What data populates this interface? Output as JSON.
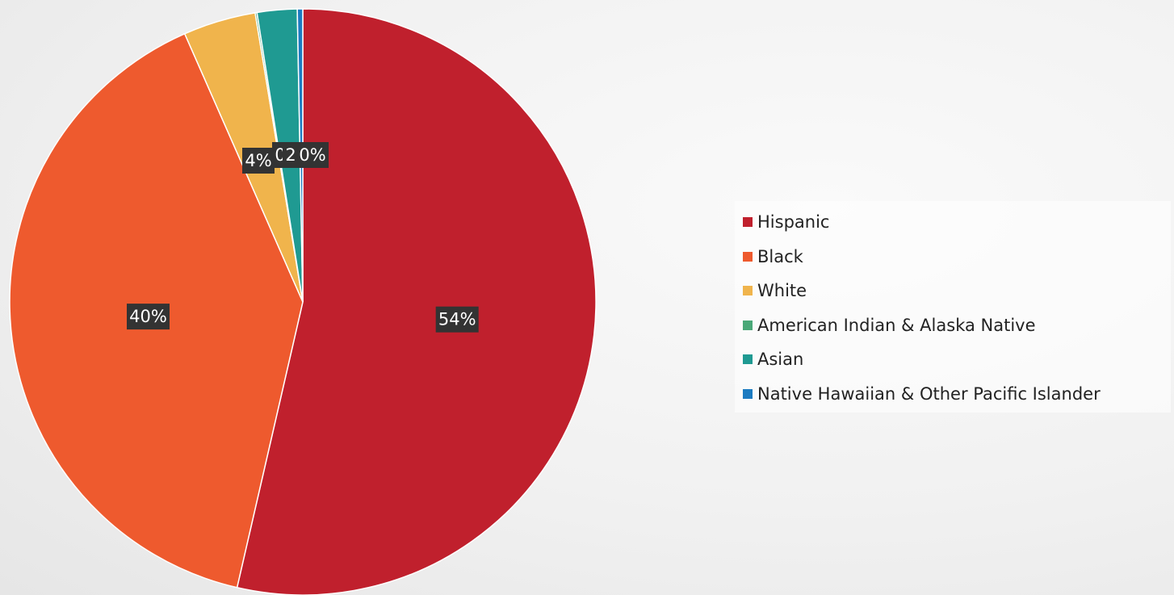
{
  "chart_data": {
    "type": "pie",
    "title": "",
    "start_angle_deg": 0,
    "direction": "clockwise",
    "categories": [
      "Hispanic",
      "Black",
      "White",
      "American Indian & Alaska Native",
      "Asian",
      "Native Hawaiian & Other Pacific Islander"
    ],
    "values": [
      53.6,
      39.8,
      4.0,
      0.1,
      2.2,
      0.3
    ],
    "colors": [
      "#c0202d",
      "#ee5a2e",
      "#f0b44c",
      "#4aa878",
      "#1f9a92",
      "#1c7bc1"
    ],
    "data_labels": [
      "54%",
      "40%",
      "4%",
      "0%",
      "2%",
      "0%"
    ],
    "legend_position": "right"
  }
}
